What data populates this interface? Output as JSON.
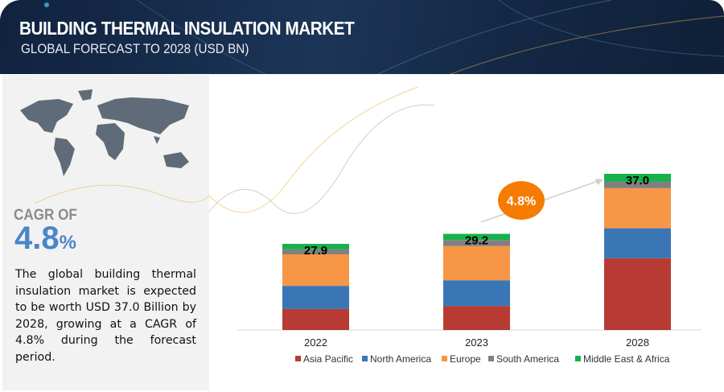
{
  "header": {
    "title": "BUILDING THERMAL INSULATION MARKET",
    "subtitle": "GLOBAL FORECAST TO 2028 (USD BN)"
  },
  "left_panel": {
    "cagr_label": "CAGR OF",
    "cagr_value": "4.8",
    "cagr_unit": "%",
    "description": "The global building thermal insulation market is expected to be worth USD 37.0 Billion by 2028, growing at a CAGR of 4.8% during the forecast period."
  },
  "chart_data": {
    "type": "bar",
    "stacked": true,
    "categories": [
      "2022",
      "2023",
      "2028"
    ],
    "totals": [
      27.9,
      29.2,
      37.0
    ],
    "total_labels": [
      "27.9",
      "29.2",
      "37.0"
    ],
    "series": [
      {
        "name": "Asia Pacific",
        "color": "#b83b33",
        "values": [
          6.8,
          7.3,
          17.0
        ]
      },
      {
        "name": "North America",
        "color": "#3a76b5",
        "values": [
          7.5,
          7.8,
          7.1
        ]
      },
      {
        "name": "Europe",
        "color": "#f79646",
        "values": [
          10.2,
          10.4,
          9.5
        ]
      },
      {
        "name": "South America",
        "color": "#808080",
        "values": [
          1.6,
          1.8,
          1.5
        ]
      },
      {
        "name": "Middle East & Africa",
        "color": "#17b04c",
        "values": [
          1.8,
          1.9,
          1.9
        ]
      }
    ],
    "annotation": {
      "text": "4.8%",
      "color": "#f57c00"
    },
    "legend_position": "bottom",
    "grid": false,
    "y_axis_shown": false
  }
}
